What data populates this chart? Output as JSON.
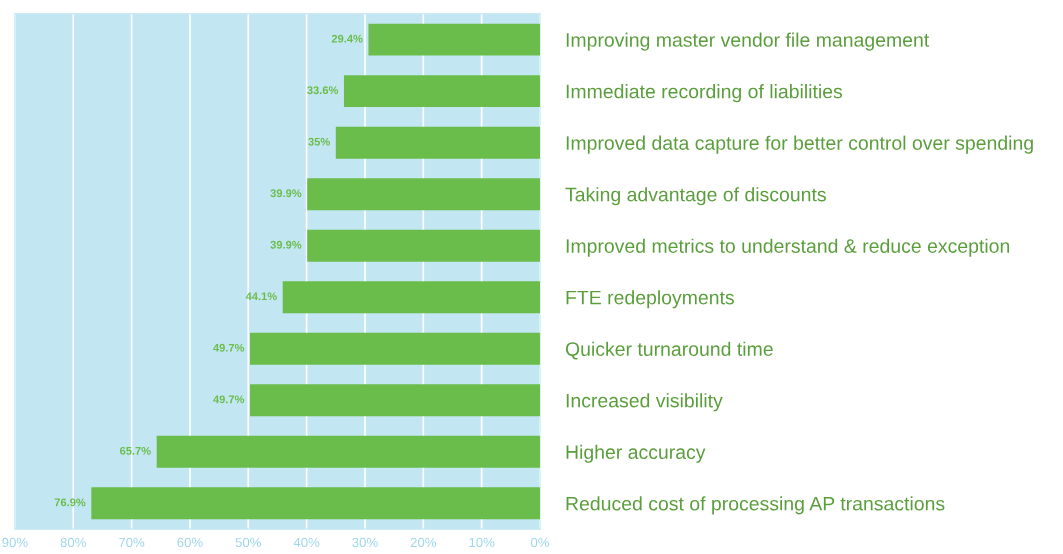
{
  "chart_data": {
    "type": "bar",
    "orientation": "horizontal",
    "categories": [
      "Improving master vendor file management",
      "Immediate recording of liabilities",
      "Improved data capture for better control over spending",
      "Taking advantage of discounts",
      "Improved metrics to understand & reduce exception",
      "FTE redeployments",
      "Quicker turnaround time",
      "Increased visibility",
      "Higher accuracy",
      "Reduced cost of processing AP transactions"
    ],
    "values": [
      29.4,
      33.6,
      35,
      39.9,
      39.9,
      44.1,
      49.7,
      49.7,
      65.7,
      76.9
    ],
    "value_labels": [
      "29.4%",
      "33.6%",
      "35%",
      "39.9%",
      "39.9%",
      "44.1%",
      "49.7%",
      "49.7%",
      "65.7%",
      "76.9%"
    ],
    "color": "#6abd4b",
    "xlim": [
      90,
      0
    ],
    "xticks": [
      {
        "value": 90,
        "label": "90%"
      },
      {
        "value": 80,
        "label": "80%"
      },
      {
        "value": 70,
        "label": "70%"
      },
      {
        "value": 60,
        "label": "60%"
      },
      {
        "value": 50,
        "label": "50%"
      },
      {
        "value": 40,
        "label": "40%"
      },
      {
        "value": 30,
        "label": "30%"
      },
      {
        "value": 20,
        "label": "20%"
      },
      {
        "value": 10,
        "label": "10%"
      },
      {
        "value": 0,
        "label": "0%"
      }
    ],
    "grid": "x",
    "legend": false
  }
}
